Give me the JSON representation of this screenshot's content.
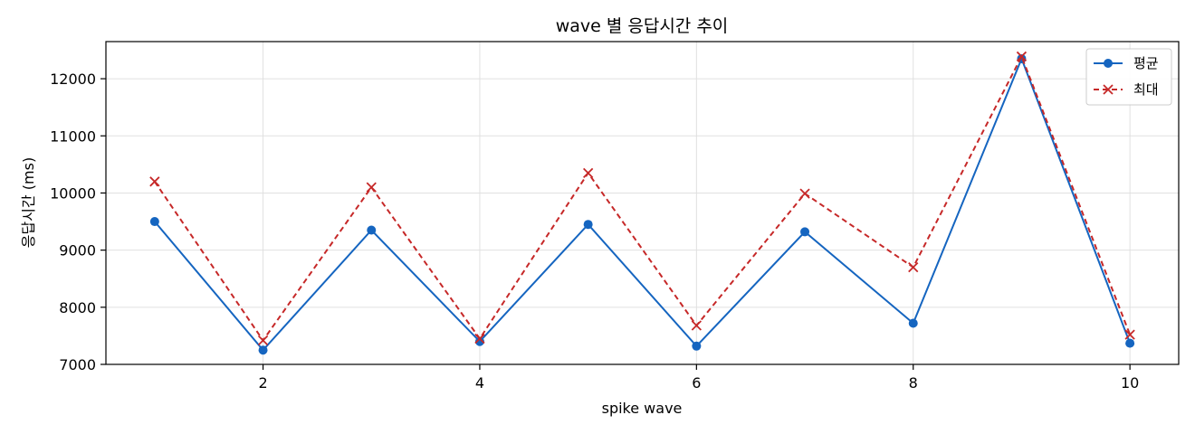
{
  "chart_data": {
    "type": "line",
    "title": "wave 별 응답시간 추이",
    "xlabel": "spike wave",
    "ylabel": "응답시간 (ms)",
    "x": [
      1,
      2,
      3,
      4,
      5,
      6,
      7,
      8,
      9,
      10
    ],
    "xlim": [
      0.55,
      10.45
    ],
    "ylim": [
      7000,
      12650
    ],
    "xticks": [
      2,
      4,
      6,
      8,
      10
    ],
    "yticks": [
      7000,
      8000,
      9000,
      10000,
      11000,
      12000
    ],
    "grid": true,
    "legend_position": "top-right",
    "series": [
      {
        "name": "평균",
        "color": "#1565c0",
        "line_style": "solid",
        "marker": "circle",
        "values": [
          9500,
          7250,
          9350,
          7400,
          9450,
          7320,
          9320,
          7720,
          12350,
          7370
        ]
      },
      {
        "name": "최대",
        "color": "#c62828",
        "line_style": "dashed",
        "marker": "x",
        "values": [
          10200,
          7420,
          10100,
          7450,
          10350,
          7680,
          9990,
          8700,
          12390,
          7520
        ]
      }
    ]
  }
}
